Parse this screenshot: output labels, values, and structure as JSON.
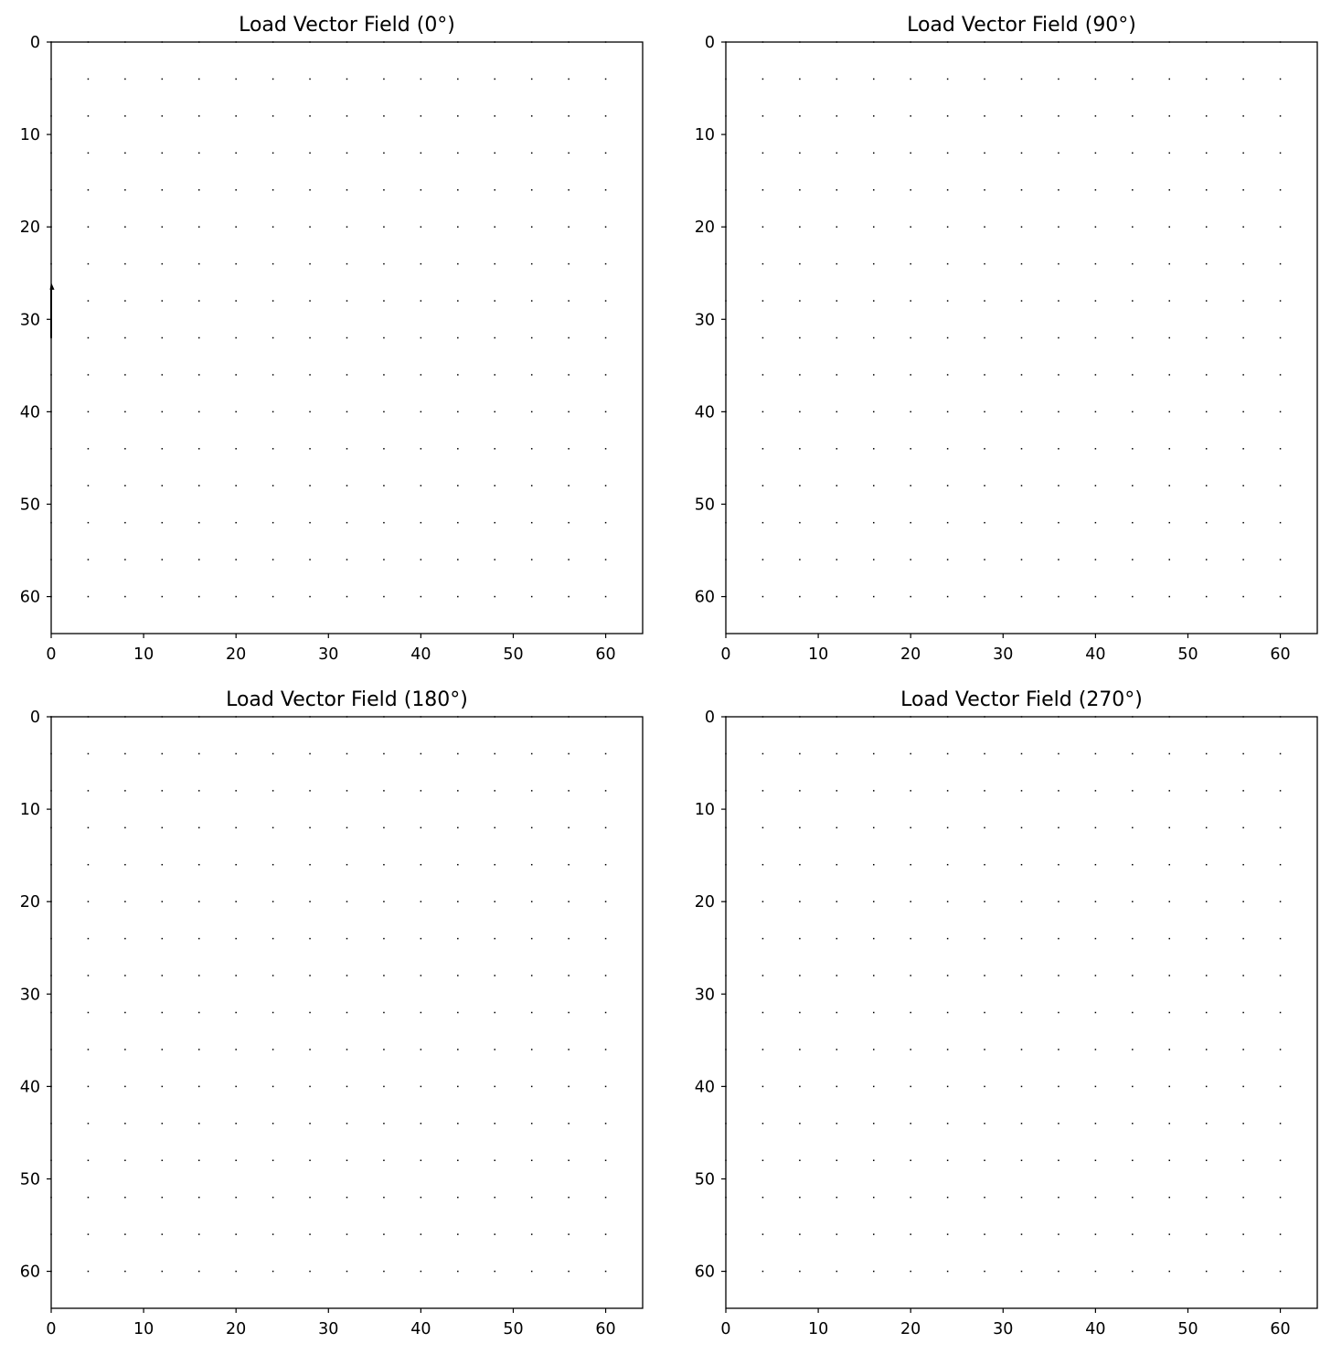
{
  "chart_data": [
    {
      "type": "quiver",
      "title": "Load Vector Field (0°)",
      "xlim": [
        0,
        64
      ],
      "ylim": [
        64,
        0
      ],
      "y_inverted": true,
      "grid": false,
      "x_ticks": [
        0,
        10,
        20,
        30,
        40,
        50,
        60
      ],
      "y_ticks": [
        0,
        10,
        20,
        30,
        40,
        50,
        60
      ],
      "grid_points": {
        "x": [
          0,
          4,
          8,
          12,
          16,
          20,
          24,
          28,
          32,
          36,
          40,
          44,
          48,
          52,
          56,
          60
        ],
        "y": [
          0,
          4,
          8,
          12,
          16,
          20,
          24,
          28,
          32,
          36,
          40,
          44,
          48,
          52,
          56,
          60
        ]
      },
      "vectors": [
        {
          "x": 0,
          "y": 32,
          "u": 0,
          "v": -6
        }
      ]
    },
    {
      "type": "quiver",
      "title": "Load Vector Field (90°)",
      "xlim": [
        0,
        64
      ],
      "ylim": [
        64,
        0
      ],
      "y_inverted": true,
      "grid": false,
      "x_ticks": [
        0,
        10,
        20,
        30,
        40,
        50,
        60
      ],
      "y_ticks": [
        0,
        10,
        20,
        30,
        40,
        50,
        60
      ],
      "grid_points": {
        "x": [
          0,
          4,
          8,
          12,
          16,
          20,
          24,
          28,
          32,
          36,
          40,
          44,
          48,
          52,
          56,
          60
        ],
        "y": [
          0,
          4,
          8,
          12,
          16,
          20,
          24,
          28,
          32,
          36,
          40,
          44,
          48,
          52,
          56,
          60
        ]
      },
      "vectors": []
    },
    {
      "type": "quiver",
      "title": "Load Vector Field (180°)",
      "xlim": [
        0,
        64
      ],
      "ylim": [
        64,
        0
      ],
      "y_inverted": true,
      "grid": false,
      "x_ticks": [
        0,
        10,
        20,
        30,
        40,
        50,
        60
      ],
      "y_ticks": [
        0,
        10,
        20,
        30,
        40,
        50,
        60
      ],
      "grid_points": {
        "x": [
          0,
          4,
          8,
          12,
          16,
          20,
          24,
          28,
          32,
          36,
          40,
          44,
          48,
          52,
          56,
          60
        ],
        "y": [
          0,
          4,
          8,
          12,
          16,
          20,
          24,
          28,
          32,
          36,
          40,
          44,
          48,
          52,
          56,
          60
        ]
      },
      "vectors": []
    },
    {
      "type": "quiver",
      "title": "Load Vector Field (270°)",
      "xlim": [
        0,
        64
      ],
      "ylim": [
        64,
        0
      ],
      "y_inverted": true,
      "grid": false,
      "x_ticks": [
        0,
        10,
        20,
        30,
        40,
        50,
        60
      ],
      "y_ticks": [
        0,
        10,
        20,
        30,
        40,
        50,
        60
      ],
      "grid_points": {
        "x": [
          0,
          4,
          8,
          12,
          16,
          20,
          24,
          28,
          32,
          36,
          40,
          44,
          48,
          52,
          56,
          60
        ],
        "y": [
          0,
          4,
          8,
          12,
          16,
          20,
          24,
          28,
          32,
          36,
          40,
          44,
          48,
          52,
          56,
          60
        ]
      },
      "vectors": []
    }
  ]
}
